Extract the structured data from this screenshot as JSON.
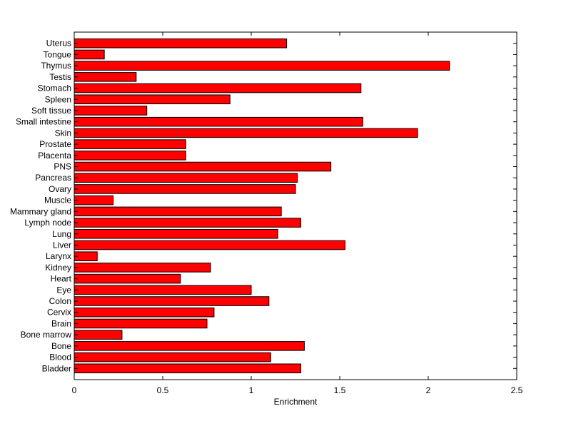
{
  "chart_data": {
    "type": "bar",
    "orientation": "horizontal",
    "categories": [
      "Uterus",
      "Tongue",
      "Thymus",
      "Testis",
      "Stomach",
      "Spleen",
      "Soft tissue",
      "Small intestine",
      "Skin",
      "Prostate",
      "Placenta",
      "PNS",
      "Pancreas",
      "Ovary",
      "Muscle",
      "Mammary gland",
      "Lymph node",
      "Lung",
      "Liver",
      "Larynx",
      "Kidney",
      "Heart",
      "Eye",
      "Colon",
      "Cervix",
      "Brain",
      "Bone marrow",
      "Bone",
      "Blood",
      "Bladder"
    ],
    "values": [
      1.2,
      0.17,
      2.12,
      0.35,
      1.62,
      0.88,
      0.41,
      1.63,
      1.94,
      0.63,
      0.63,
      1.45,
      1.26,
      1.25,
      0.22,
      1.17,
      1.28,
      1.15,
      1.53,
      0.13,
      0.77,
      0.6,
      1.0,
      1.1,
      0.79,
      0.75,
      0.27,
      1.3,
      1.11,
      1.28
    ],
    "xlabel": "Enrichment",
    "ylabel": "",
    "title": "",
    "xlim": [
      0,
      2.5
    ],
    "xticks": [
      "0",
      "0.5",
      "1",
      "1.5",
      "2",
      "2.5"
    ],
    "grid": false,
    "bar_color": "#ff0000",
    "edge_color": "#000000"
  }
}
